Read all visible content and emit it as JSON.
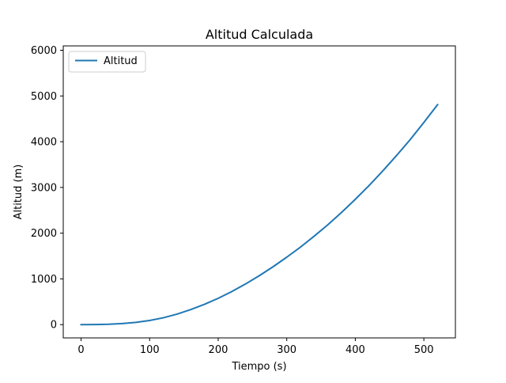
{
  "chart_data": {
    "type": "line",
    "title": "Altitud Calculada",
    "xlabel": "Tiempo (s)",
    "ylabel": "Altitud (m)",
    "xlim": [
      -26,
      546
    ],
    "ylim": [
      -290,
      6095
    ],
    "xticks": [
      0,
      100,
      200,
      300,
      400,
      500
    ],
    "yticks": [
      0,
      1000,
      2000,
      3000,
      4000,
      5000,
      6000
    ],
    "grid": false,
    "legend_position": "top-left",
    "series": [
      {
        "name": "Altitud",
        "color": "#1f77b4",
        "x": [
          0,
          20,
          40,
          60,
          80,
          100,
          120,
          140,
          160,
          180,
          200,
          220,
          240,
          260,
          280,
          300,
          320,
          340,
          360,
          380,
          400,
          420,
          440,
          460,
          480,
          500,
          520
        ],
        "y": [
          0,
          2,
          8,
          23,
          50,
          90,
          150,
          230,
          330,
          445,
          575,
          725,
          890,
          1070,
          1265,
          1475,
          1695,
          1935,
          2185,
          2455,
          2740,
          3040,
          3360,
          3695,
          4045,
          4420,
          4810
        ]
      }
    ]
  }
}
